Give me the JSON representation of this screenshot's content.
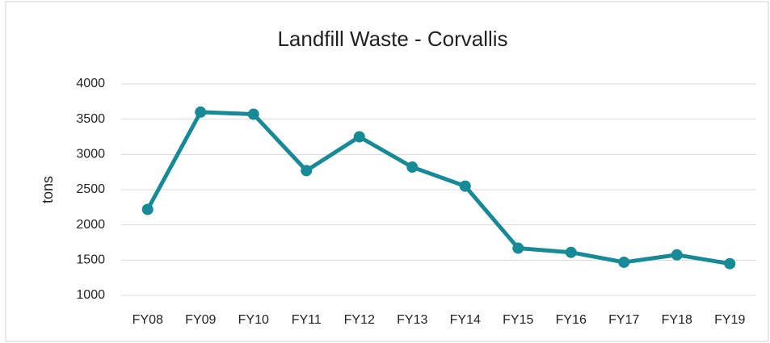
{
  "chart_data": {
    "type": "line",
    "title": "Landfill Waste - Corvallis",
    "y_label": "tons",
    "categories": [
      "FY08",
      "FY09",
      "FY10",
      "FY11",
      "FY12",
      "FY13",
      "FY14",
      "FY15",
      "FY16",
      "FY17",
      "FY18",
      "FY19"
    ],
    "series": [
      {
        "name": "Landfill Waste",
        "color": "#168a96",
        "values": [
          2220,
          3600,
          3570,
          2770,
          3250,
          2820,
          2550,
          1670,
          1610,
          1470,
          1575,
          1450
        ]
      }
    ],
    "ylim": [
      1000,
      4000
    ],
    "yticks": [
      1000,
      1500,
      2000,
      2500,
      3000,
      3500,
      4000
    ],
    "grid": true,
    "legend": false
  }
}
